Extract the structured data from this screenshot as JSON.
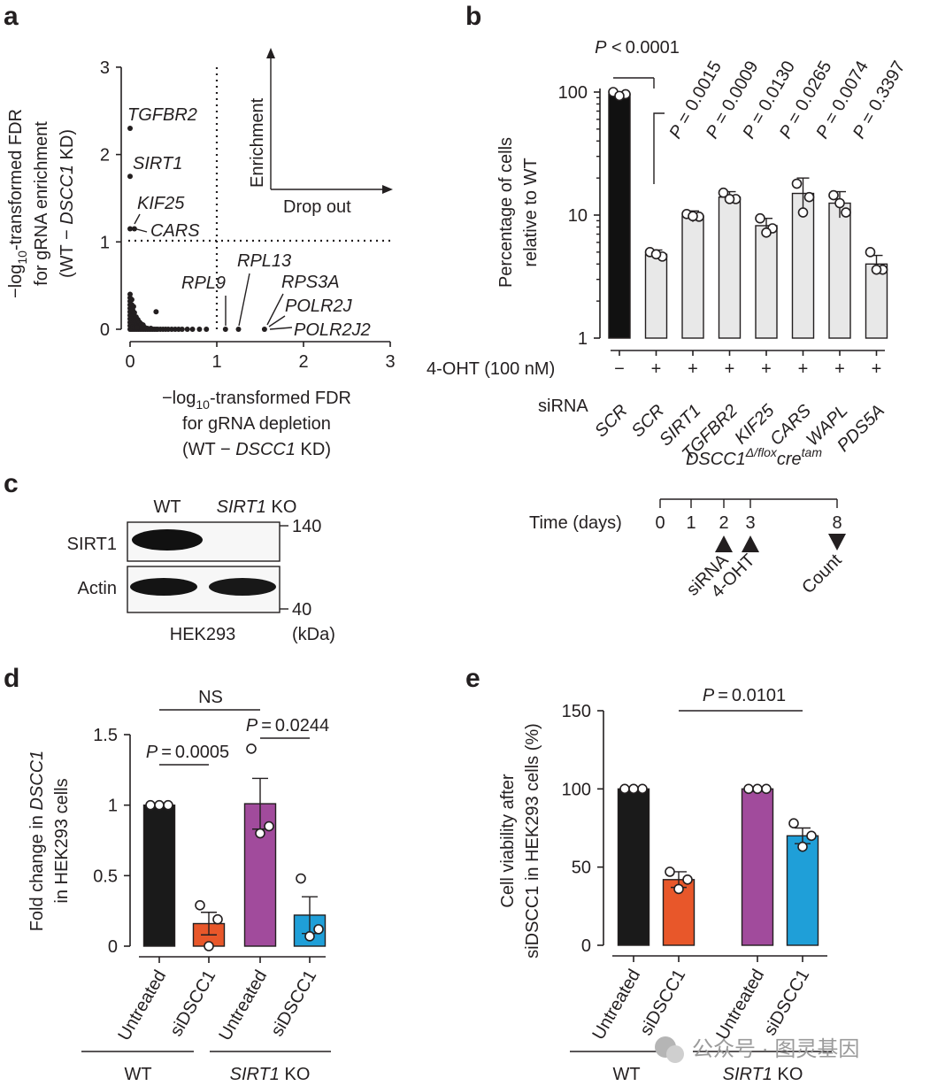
{
  "chart_data": [
    {
      "panel": "a",
      "type": "scatter",
      "xlabel_lines": [
        "−log",
        "10",
        "-transformed FDR",
        "for gRNA depletion",
        "(WT − ",
        "DSCC1",
        " KD)"
      ],
      "ylabel_lines": [
        "−log",
        "10",
        "-transformed FDR",
        "for gRNA enrichment",
        "(WT − ",
        "DSCC1",
        " KD)"
      ],
      "xlim": [
        0,
        3
      ],
      "ylim": [
        0,
        3
      ],
      "xticks": [
        "0",
        "1",
        "2",
        "3"
      ],
      "yticks": [
        "0",
        "1",
        "2",
        "3"
      ],
      "threshold_x": 1,
      "threshold_y": 1,
      "inset": {
        "y_label": "Enrichment",
        "x_label": "Drop out"
      },
      "labeled_points": [
        {
          "label": "TGFBR2",
          "x": 0.0,
          "y": 2.3
        },
        {
          "label": "SIRT1",
          "x": 0.0,
          "y": 1.75
        },
        {
          "label": "KIF25",
          "x": 0.0,
          "y": 1.15
        },
        {
          "label": "CARS",
          "x": 0.05,
          "y": 1.15
        },
        {
          "label": "RPL9",
          "x": 1.1,
          "y": 0.0
        },
        {
          "label": "RPL13",
          "x": 1.25,
          "y": 0.0
        },
        {
          "label": "RPS3A",
          "x": 1.55,
          "y": 0.0
        },
        {
          "label": "POLR2J",
          "x": 1.55,
          "y": 0.0
        },
        {
          "label": "POLR2J2",
          "x": 1.55,
          "y": 0.0
        }
      ],
      "background_points": [
        [
          0.0,
          0.0
        ],
        [
          0.02,
          0.0
        ],
        [
          0.04,
          0.0
        ],
        [
          0.06,
          0.0
        ],
        [
          0.08,
          0.0
        ],
        [
          0.1,
          0.0
        ],
        [
          0.12,
          0.0
        ],
        [
          0.14,
          0.0
        ],
        [
          0.16,
          0.0
        ],
        [
          0.18,
          0.0
        ],
        [
          0.2,
          0.0
        ],
        [
          0.22,
          0.0
        ],
        [
          0.24,
          0.0
        ],
        [
          0.26,
          0.0
        ],
        [
          0.28,
          0.0
        ],
        [
          0.3,
          0.0
        ],
        [
          0.32,
          0.0
        ],
        [
          0.35,
          0.0
        ],
        [
          0.38,
          0.0
        ],
        [
          0.41,
          0.0
        ],
        [
          0.44,
          0.0
        ],
        [
          0.48,
          0.0
        ],
        [
          0.52,
          0.0
        ],
        [
          0.56,
          0.0
        ],
        [
          0.6,
          0.0
        ],
        [
          0.66,
          0.0
        ],
        [
          0.72,
          0.0
        ],
        [
          0.8,
          0.0
        ],
        [
          0.88,
          0.0
        ],
        [
          0.0,
          0.4
        ],
        [
          0.0,
          0.36
        ],
        [
          0.0,
          0.32
        ],
        [
          0.0,
          0.28
        ],
        [
          0.0,
          0.24
        ],
        [
          0.0,
          0.2
        ],
        [
          0.0,
          0.16
        ],
        [
          0.0,
          0.12
        ],
        [
          0.0,
          0.08
        ],
        [
          0.0,
          0.04
        ],
        [
          0.02,
          0.34
        ],
        [
          0.02,
          0.28
        ],
        [
          0.03,
          0.22
        ],
        [
          0.03,
          0.16
        ],
        [
          0.04,
          0.12
        ],
        [
          0.05,
          0.1
        ],
        [
          0.06,
          0.08
        ],
        [
          0.07,
          0.06
        ],
        [
          0.08,
          0.05
        ],
        [
          0.1,
          0.04
        ],
        [
          0.12,
          0.03
        ],
        [
          0.14,
          0.02
        ],
        [
          0.17,
          0.02
        ],
        [
          0.2,
          0.01
        ],
        [
          0.24,
          0.01
        ],
        [
          0.04,
          0.26
        ],
        [
          0.05,
          0.19
        ],
        [
          0.07,
          0.14
        ],
        [
          0.09,
          0.11
        ],
        [
          0.11,
          0.08
        ],
        [
          0.13,
          0.06
        ],
        [
          0.15,
          0.05
        ],
        [
          0.3,
          0.2
        ],
        [
          0.02,
          0.05
        ],
        [
          0.03,
          0.03
        ],
        [
          0.05,
          0.02
        ],
        [
          0.08,
          0.02
        ]
      ]
    },
    {
      "panel": "b",
      "type": "bar",
      "scale": "log",
      "ylabel_lines": [
        "Percentage of cells",
        "relative to WT"
      ],
      "ylim": [
        1,
        120
      ],
      "yticks": [
        "1",
        "10",
        "100"
      ],
      "treatment_row_label": "4-OHT (100 nM)",
      "sirna_row_label": "siRNA",
      "treatment": [
        "−",
        "+",
        "+",
        "+",
        "+",
        "+",
        "+",
        "+"
      ],
      "categories": [
        "SCR",
        "SCR",
        "SIRT1",
        "TGFBR2",
        "KIF25",
        "CARS",
        "WAPL",
        "PDS5A"
      ],
      "values": [
        96,
        4.8,
        9.8,
        14,
        8.2,
        15,
        12.5,
        4.0
      ],
      "errors": [
        4,
        0.4,
        1.0,
        1.5,
        1.2,
        5,
        3,
        0.7
      ],
      "points": [
        [
          100,
          96,
          93
        ],
        [
          5.0,
          4.6,
          4.8
        ],
        [
          10.2,
          9.7,
          9.8
        ],
        [
          15.2,
          13.5,
          13.5
        ],
        [
          9.4,
          7.8,
          7.2
        ],
        [
          18,
          14,
          10.5
        ],
        [
          14.5,
          10.5,
          12.5
        ],
        [
          5.0,
          3.6,
          3.6
        ]
      ],
      "main_comparison": "P < 0.0001",
      "p_values": [
        "P = 0.0015",
        "P = 0.0009",
        "P = 0.0130",
        "P = 0.0265",
        "P = 0.0074",
        "P = 0.3397"
      ],
      "genotype_label": {
        "main": "DSCC1",
        "sup1": "Δ/flox",
        "mid": "cre",
        "sup2": "tam"
      }
    },
    {
      "panel": "b-timeline",
      "type": "table",
      "label": "Time (days)",
      "ticks": [
        "0",
        "1",
        "2",
        "3",
        "8"
      ],
      "events": [
        {
          "day": "2",
          "label": "siRNA"
        },
        {
          "day": "3",
          "label": "4-OHT"
        },
        {
          "day": "8",
          "label": "Count"
        }
      ]
    },
    {
      "panel": "c",
      "type": "table",
      "lanes": [
        "WT",
        "SIRT1 KO"
      ],
      "rows": [
        "SIRT1",
        "Actin"
      ],
      "markers": [
        "140",
        "40",
        "(kDa)"
      ],
      "cell_line": "HEK293"
    },
    {
      "panel": "d",
      "type": "bar",
      "ylabel_lines": [
        "Fold  change in ",
        "DSCC1",
        "in HEK293 cells"
      ],
      "ylim": [
        0,
        1.5
      ],
      "yticks": [
        "0",
        "0.5",
        "1",
        "1.5"
      ],
      "categories": [
        "Untreated",
        "siDSCC1",
        "Untreated",
        "siDSCC1"
      ],
      "groups": [
        "WT",
        "SIRT1 KO"
      ],
      "values": [
        1.0,
        0.16,
        1.01,
        0.22
      ],
      "errors": [
        0.0,
        0.08,
        0.18,
        0.13
      ],
      "points": [
        [
          1.0,
          1.0,
          1.0
        ],
        [
          0.29,
          0.19,
          0.0
        ],
        [
          1.4,
          0.85,
          0.8
        ],
        [
          0.48,
          0.12,
          0.07
        ]
      ],
      "colors": [
        "#1a1a1a",
        "#e8572a",
        "#a14b9c",
        "#1f9fd8"
      ],
      "comparisons": [
        "NS",
        "P = 0.0005",
        "P = 0.0244"
      ]
    },
    {
      "panel": "e",
      "type": "bar",
      "ylabel_lines": [
        "Cell viability after",
        "siDSCC1 in HEK293 cells (%)"
      ],
      "ylim": [
        0,
        150
      ],
      "yticks": [
        "0",
        "50",
        "100",
        "150"
      ],
      "categories": [
        "Untreated",
        "siDSCC1",
        "Untreated",
        "siDSCC1"
      ],
      "groups": [
        "WT",
        "SIRT1 KO"
      ],
      "values": [
        100,
        42,
        100,
        70
      ],
      "errors": [
        0,
        5,
        0,
        5
      ],
      "points": [
        [
          100,
          100,
          100
        ],
        [
          47,
          42,
          36
        ],
        [
          100,
          100,
          100
        ],
        [
          78,
          70,
          63
        ]
      ],
      "colors": [
        "#1a1a1a",
        "#e8572a",
        "#a14b9c",
        "#1f9fd8"
      ],
      "comparisons": [
        "P = 0.0101"
      ]
    }
  ],
  "panel_letters": [
    "a",
    "b",
    "c",
    "d",
    "e"
  ],
  "watermark": "公众号 · 图灵基因",
  "colors": {
    "ink": "#231f20",
    "light_bar": "#e8e8e8",
    "wm": "#9a9a9a"
  }
}
